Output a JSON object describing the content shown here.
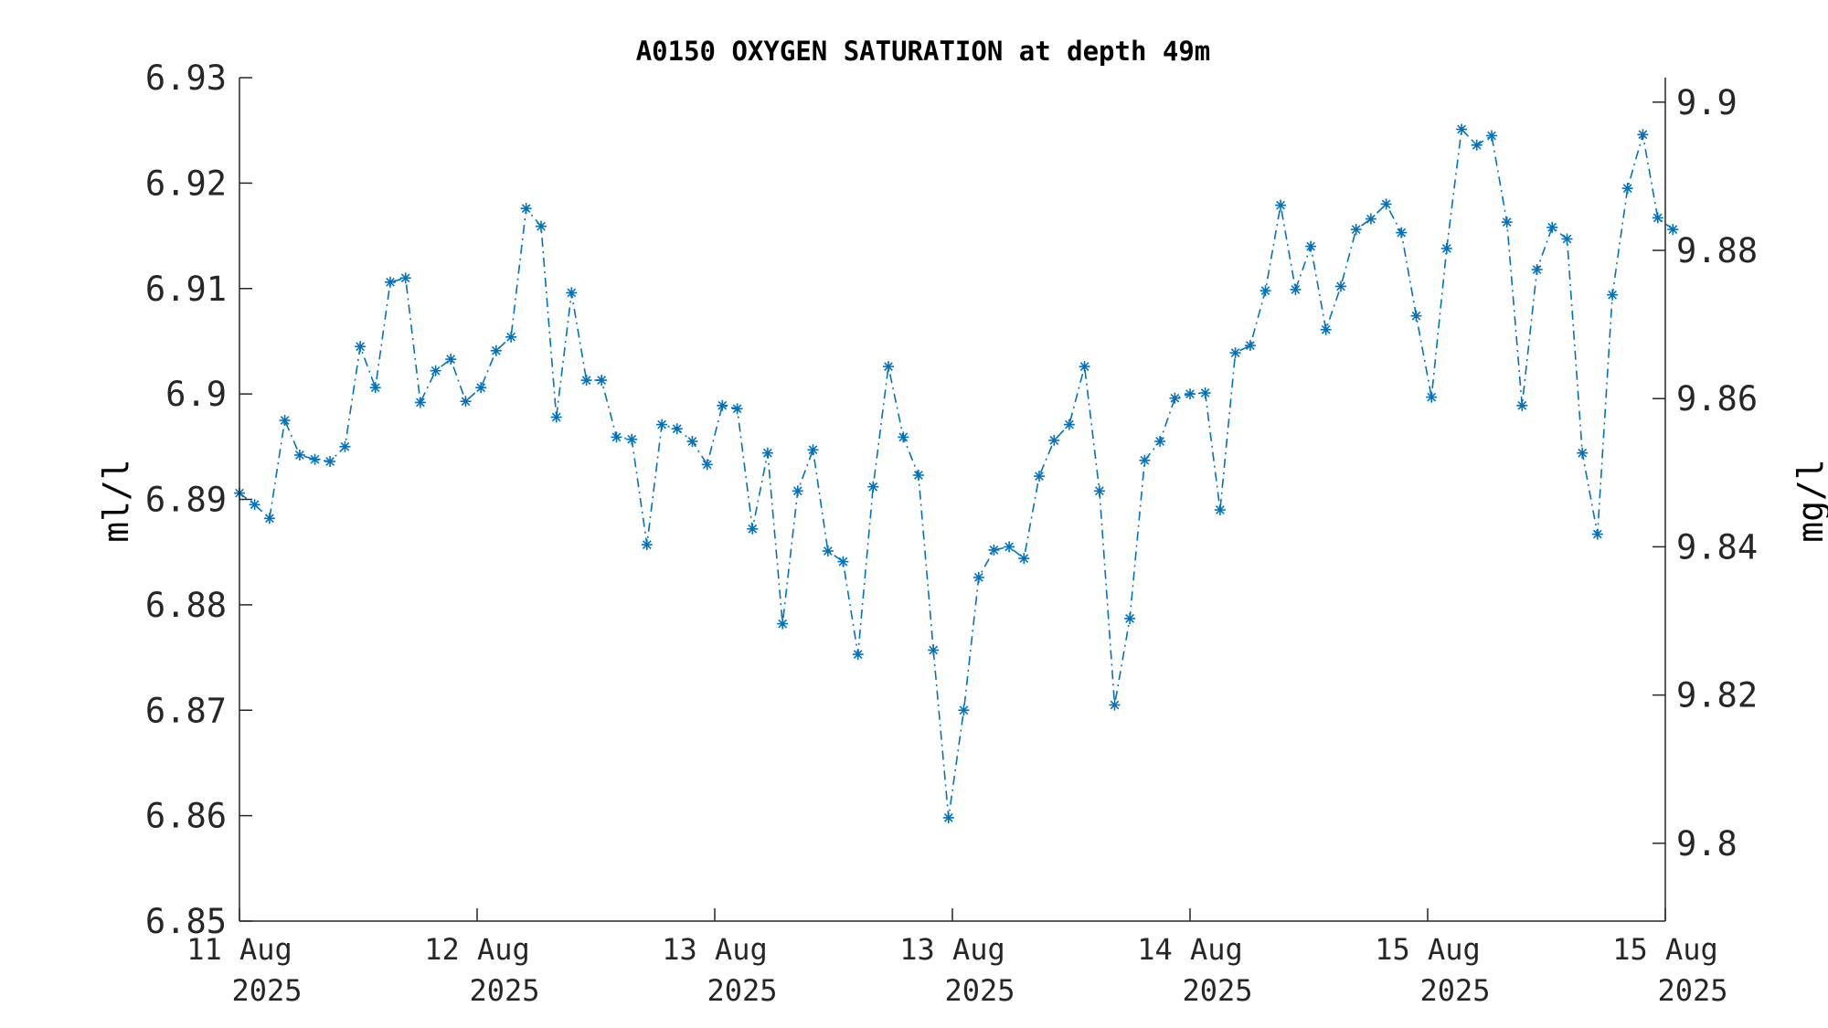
{
  "chart_data": {
    "type": "line",
    "title": "A0150 OXYGEN SATURATION at depth 49m",
    "ylabel": "ml/l",
    "y2label": "mg/l",
    "ylim": [
      6.85,
      6.93
    ],
    "y2lim": [
      9.7895,
      9.9033
    ],
    "yticks": [
      "6.85",
      "6.86",
      "6.87",
      "6.88",
      "6.89",
      "6.9",
      "6.91",
      "6.92",
      "6.93"
    ],
    "yticks_values": [
      6.85,
      6.86,
      6.87,
      6.88,
      6.89,
      6.9,
      6.91,
      6.92,
      6.93
    ],
    "y2ticks": [
      "9.8",
      "9.82",
      "9.84",
      "9.86",
      "9.88",
      "9.9"
    ],
    "y2ticks_values": [
      9.8,
      9.82,
      9.84,
      9.86,
      9.88,
      9.9
    ],
    "xlim": [
      0,
      4.5
    ],
    "xticks": [
      {
        "value": 0,
        "day": "11 Aug",
        "year": "2025"
      },
      {
        "value": 0.75,
        "day": "12 Aug",
        "year": "2025"
      },
      {
        "value": 1.5,
        "day": "13 Aug",
        "year": "2025"
      },
      {
        "value": 2.25,
        "day": "13 Aug",
        "year": "2025"
      },
      {
        "value": 3.0,
        "day": "14 Aug",
        "year": "2025"
      },
      {
        "value": 3.75,
        "day": "15 Aug",
        "year": "2025"
      },
      {
        "value": 4.5,
        "day": "15 Aug",
        "year": "2025"
      }
    ],
    "grid": false,
    "legend": "none",
    "series": [
      {
        "color": "#0072BD",
        "marker": "asterisk",
        "line_style": "dash-dot",
        "x": [
          0.0,
          0.048,
          0.095,
          0.143,
          0.19,
          0.238,
          0.286,
          0.333,
          0.381,
          0.429,
          0.476,
          0.524,
          0.571,
          0.619,
          0.667,
          0.714,
          0.762,
          0.81,
          0.857,
          0.905,
          0.952,
          1.0,
          1.048,
          1.095,
          1.143,
          1.19,
          1.238,
          1.286,
          1.333,
          1.381,
          1.429,
          1.476,
          1.524,
          1.571,
          1.619,
          1.667,
          1.714,
          1.762,
          1.81,
          1.857,
          1.905,
          1.952,
          2.0,
          2.048,
          2.095,
          2.143,
          2.19,
          2.238,
          2.286,
          2.333,
          2.381,
          2.429,
          2.476,
          2.524,
          2.571,
          2.619,
          2.667,
          2.714,
          2.762,
          2.81,
          2.857,
          2.905,
          2.952,
          3.0,
          3.048,
          3.095,
          3.143,
          3.19,
          3.238,
          3.286,
          3.333,
          3.381,
          3.429,
          3.476,
          3.524,
          3.571,
          3.619,
          3.667,
          3.714,
          3.762,
          3.81,
          3.857,
          3.905,
          3.952,
          4.0,
          4.048,
          4.095,
          4.143,
          4.19,
          4.238,
          4.286,
          4.333,
          4.381,
          4.429,
          4.476,
          4.524
        ],
        "y": [
          6.8906,
          6.8895,
          6.8882,
          6.8975,
          6.8942,
          6.8938,
          6.8936,
          6.895,
          6.9045,
          6.9006,
          6.9106,
          6.911,
          6.8992,
          6.9022,
          6.9033,
          6.8993,
          6.9006,
          6.9041,
          6.9054,
          6.9176,
          6.9159,
          6.8978,
          6.9096,
          6.9013,
          6.9013,
          6.8959,
          6.8957,
          6.8857,
          6.8971,
          6.8967,
          6.8955,
          6.8933,
          6.8989,
          6.8986,
          6.8872,
          6.8944,
          6.8782,
          6.8908,
          6.8947,
          6.8851,
          6.8841,
          6.8753,
          6.8912,
          6.9026,
          6.8959,
          6.8923,
          6.8757,
          6.8598,
          6.87,
          6.8826,
          6.8852,
          6.8855,
          6.8844,
          6.8922,
          6.8956,
          6.8971,
          6.9026,
          6.8908,
          6.8705,
          6.8787,
          6.8937,
          6.8955,
          6.8996,
          6.9,
          6.9001,
          6.889,
          6.9039,
          6.9046,
          6.9098,
          6.9179,
          6.9099,
          6.914,
          6.9061,
          6.9102,
          6.9156,
          6.9166,
          6.918,
          6.9153,
          6.9074,
          6.8997,
          6.9138,
          6.9251,
          6.9236,
          6.9245,
          6.9163,
          6.8989,
          6.9118,
          6.9158,
          6.9147,
          6.8944,
          6.8867,
          6.9094,
          6.9195,
          6.9246,
          6.9167,
          6.9156
        ]
      }
    ]
  }
}
